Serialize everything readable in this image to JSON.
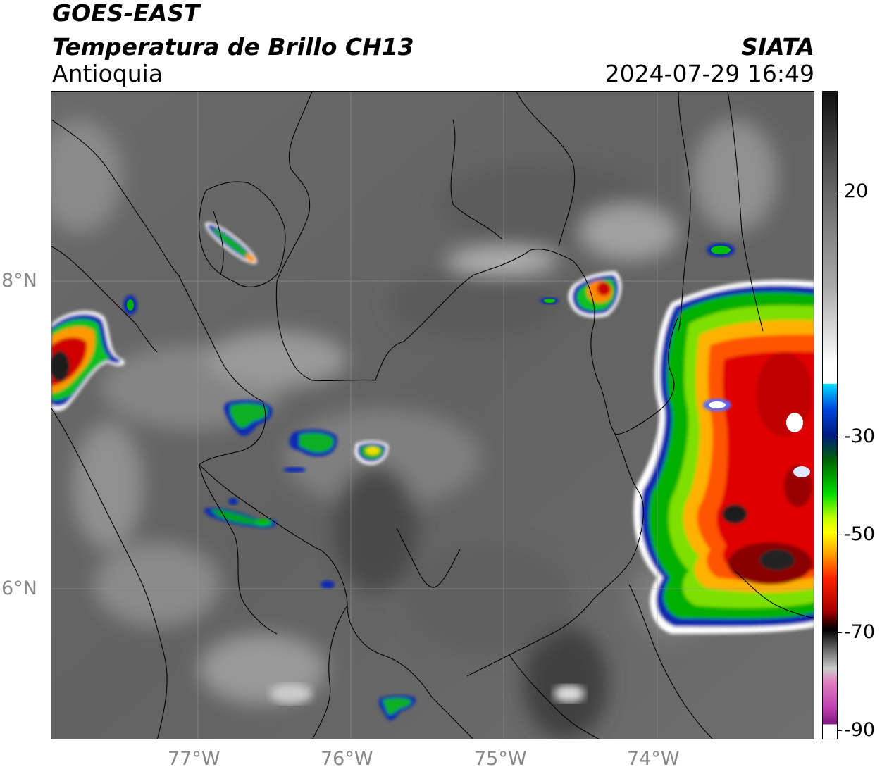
{
  "header": {
    "satellite": "GOES-EAST",
    "product": "Temperatura de Brillo CH13",
    "region": "Antioquia",
    "agency": "SIATA",
    "datetime": "2024-07-29 16:49"
  },
  "axes": {
    "lat_labels": [
      "8°N",
      "6°N"
    ],
    "lon_labels": [
      "77°W",
      "76°W",
      "75°W",
      "74°W"
    ]
  },
  "colorbar": {
    "labels": [
      "20",
      "-30",
      "-50",
      "-70",
      "-90"
    ],
    "range": [
      -90,
      30
    ],
    "colors": [
      "#8a1a8a",
      "#d050c0",
      "#c8c8c8",
      "#000000",
      "#8b0000",
      "#ff0000",
      "#ff9900",
      "#ffff00",
      "#00cc00",
      "#006600",
      "#0000aa",
      "#00ddff",
      "#ffffff",
      "#808080",
      "#101010"
    ]
  }
}
